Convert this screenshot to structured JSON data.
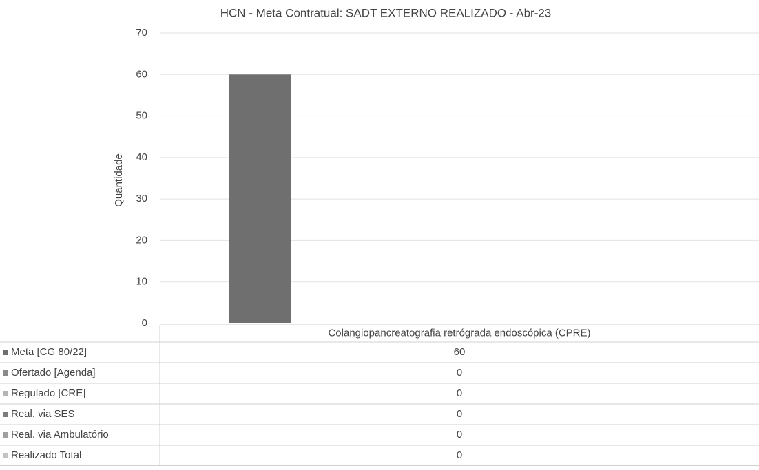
{
  "chart_data": {
    "type": "bar",
    "title": "HCN - Meta Contratual: SADT EXTERNO REALIZADO - Abr-23",
    "y_label": "Quantidade",
    "categories": [
      "Colangiopancreatografia retrógrada endoscópica (CPRE)"
    ],
    "series": [
      {
        "name": "Meta [CG 80/22]",
        "color": "#6f6f6f",
        "values": [
          60
        ]
      },
      {
        "name": "Ofertado [Agenda]",
        "color": "#8a8a8a",
        "values": [
          0
        ]
      },
      {
        "name": "Regulado [CRE]",
        "color": "#b5b5b5",
        "values": [
          0
        ]
      },
      {
        "name": "Real. via SES",
        "color": "#7d7d7d",
        "values": [
          0
        ]
      },
      {
        "name": "Real. via Ambulatório",
        "color": "#a0a0a0",
        "values": [
          0
        ]
      },
      {
        "name": "Realizado Total",
        "color": "#c4c4c4",
        "values": [
          0
        ]
      }
    ],
    "ylim": [
      0,
      70
    ],
    "yticks": [
      0,
      10,
      20,
      30,
      40,
      50,
      60,
      70
    ],
    "grid": true
  }
}
